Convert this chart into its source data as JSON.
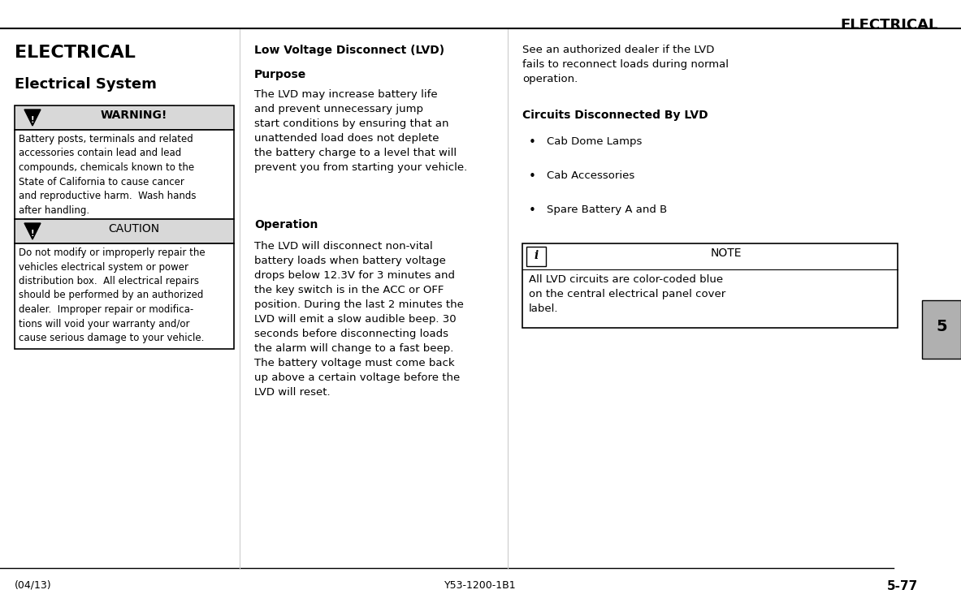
{
  "page_bg": "#ffffff",
  "header_title": "ELECTRICAL",
  "section_title": "ELECTRICAL",
  "subsection_title": "Electrical System",
  "warning_header": "WARNING!",
  "warning_body": "Battery posts, terminals and related\naccessories contain lead and lead\ncompounds, chemicals known to the\nState of California to cause cancer\nand reproductive harm.  Wash hands\nafter handling.",
  "caution_header": "CAUTION",
  "caution_body": "Do not modify or improperly repair the\nvehicles electrical system or power\ndistribution box.  All electrical repairs\nshould be performed by an authorized\ndealer.  Improper repair or modifica-\ntions will void your warranty and/or\ncause serious damage to your vehicle.",
  "col2_heading": "Low Voltage Disconnect (LVD)",
  "col2_sub1": "Purpose",
  "col2_body1": "The LVD may increase battery life\nand prevent unnecessary jump\nstart conditions by ensuring that an\nunattended load does not deplete\nthe battery charge to a level that will\nprevent you from starting your vehicle.",
  "col2_sub2": "Operation",
  "col2_body2": "The LVD will disconnect non-vital\nbattery loads when battery voltage\ndrops below 12.3V for 3 minutes and\nthe key switch is in the ACC or OFF\nposition. During the last 2 minutes the\nLVD will emit a slow audible beep. 30\nseconds before disconnecting loads\nthe alarm will change to a fast beep.\nThe battery voltage must come back\nup above a certain voltage before the\nLVD will reset.",
  "col3_body_top": "See an authorized dealer if the LVD\nfails to reconnect loads during normal\noperation.",
  "col3_sub1": "Circuits Disconnected By LVD",
  "col3_bullets": [
    "Cab Dome Lamps",
    "Cab Accessories",
    "Spare Battery A and B"
  ],
  "note_header": "NOTE",
  "note_body": "All LVD circuits are color-coded blue\non the central electrical panel cover\nlabel.",
  "footer_left": "(04/13)",
  "footer_center": "Y53-1200-1B1",
  "footer_right": "5-77",
  "tab_label": "5",
  "box_bg": "#d8d8d8",
  "box_border": "#000000"
}
